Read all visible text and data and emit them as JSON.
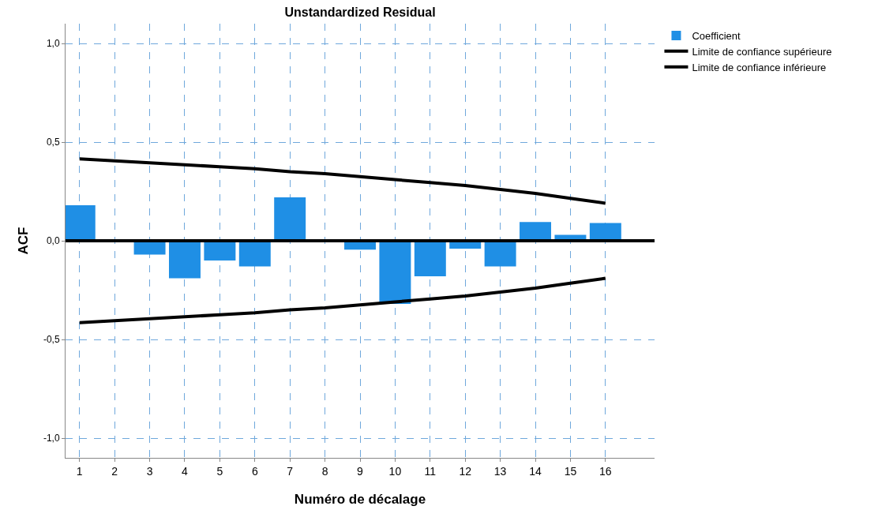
{
  "chart_data": {
    "type": "bar",
    "title": "Unstandardized Residual",
    "xlabel": "Numéro de décalage",
    "ylabel": "ACF",
    "x": [
      1,
      2,
      3,
      4,
      5,
      6,
      7,
      8,
      9,
      10,
      11,
      12,
      13,
      14,
      15,
      16
    ],
    "series": [
      {
        "name": "Coefficient",
        "color": "#1f8fe5",
        "values": [
          0.18,
          0,
          -0.07,
          -0.19,
          -0.1,
          -0.13,
          0.22,
          0,
          -0.045,
          -0.32,
          -0.18,
          -0.04,
          -0.13,
          0.095,
          0.03,
          0.09
        ]
      },
      {
        "name": "Limite de confiance supérieure",
        "type": "line",
        "color": "#000000",
        "values": [
          0.415,
          0.405,
          0.395,
          0.385,
          0.375,
          0.365,
          0.35,
          0.34,
          0.325,
          0.31,
          0.295,
          0.28,
          0.26,
          0.24,
          0.215,
          0.19
        ]
      },
      {
        "name": "Limite de confiance inférieure",
        "type": "line",
        "color": "#000000",
        "values": [
          -0.415,
          -0.405,
          -0.395,
          -0.385,
          -0.375,
          -0.365,
          -0.35,
          -0.34,
          -0.325,
          -0.31,
          -0.295,
          -0.28,
          -0.26,
          -0.24,
          -0.215,
          -0.19
        ]
      }
    ],
    "xlim": [
      0.6,
      17.4
    ],
    "xticks": [
      1,
      2,
      3,
      4,
      5,
      6,
      7,
      8,
      9,
      10,
      11,
      12,
      13,
      14,
      15,
      16
    ],
    "ylim": [
      -1.1,
      1.1
    ],
    "yticks": [
      {
        "value": -1,
        "label": "-1,0"
      },
      {
        "value": -0.5,
        "label": "-0,5"
      },
      {
        "value": 0,
        "label": "0,0"
      },
      {
        "value": 0.5,
        "label": "0,5"
      },
      {
        "value": 1,
        "label": "1,0"
      }
    ],
    "ref_lines": [
      {
        "axis": "y",
        "value": 0,
        "color": "#000000"
      }
    ],
    "grid": true,
    "legend": "top right",
    "marker": "none",
    "line_style": "solid"
  }
}
